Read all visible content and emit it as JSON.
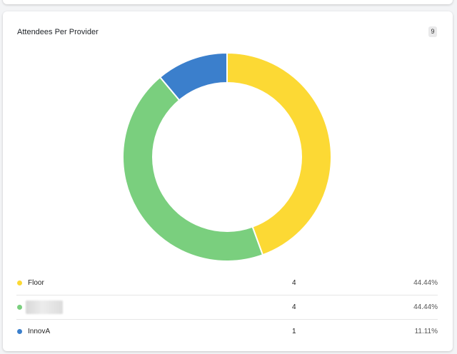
{
  "card": {
    "title": "Attendees Per Provider",
    "count": "9"
  },
  "chart_data": {
    "type": "pie",
    "title": "Attendees Per Provider",
    "categories": [
      "Floor",
      "",
      "InnovA"
    ],
    "values": [
      4,
      4,
      1
    ],
    "percents": [
      "44.44%",
      "44.44%",
      "11.11%"
    ],
    "colors": [
      "#fcd934",
      "#7acf7e",
      "#3b7fcc"
    ],
    "donut": true
  },
  "legend": {
    "rows": [
      {
        "label": "Floor",
        "value": "4",
        "percent": "44.44%",
        "color": "#fcd934"
      },
      {
        "label": "",
        "value": "4",
        "percent": "44.44%",
        "color": "#7acf7e"
      },
      {
        "label": "InnovA",
        "value": "1",
        "percent": "11.11%",
        "color": "#3b7fcc"
      }
    ]
  }
}
